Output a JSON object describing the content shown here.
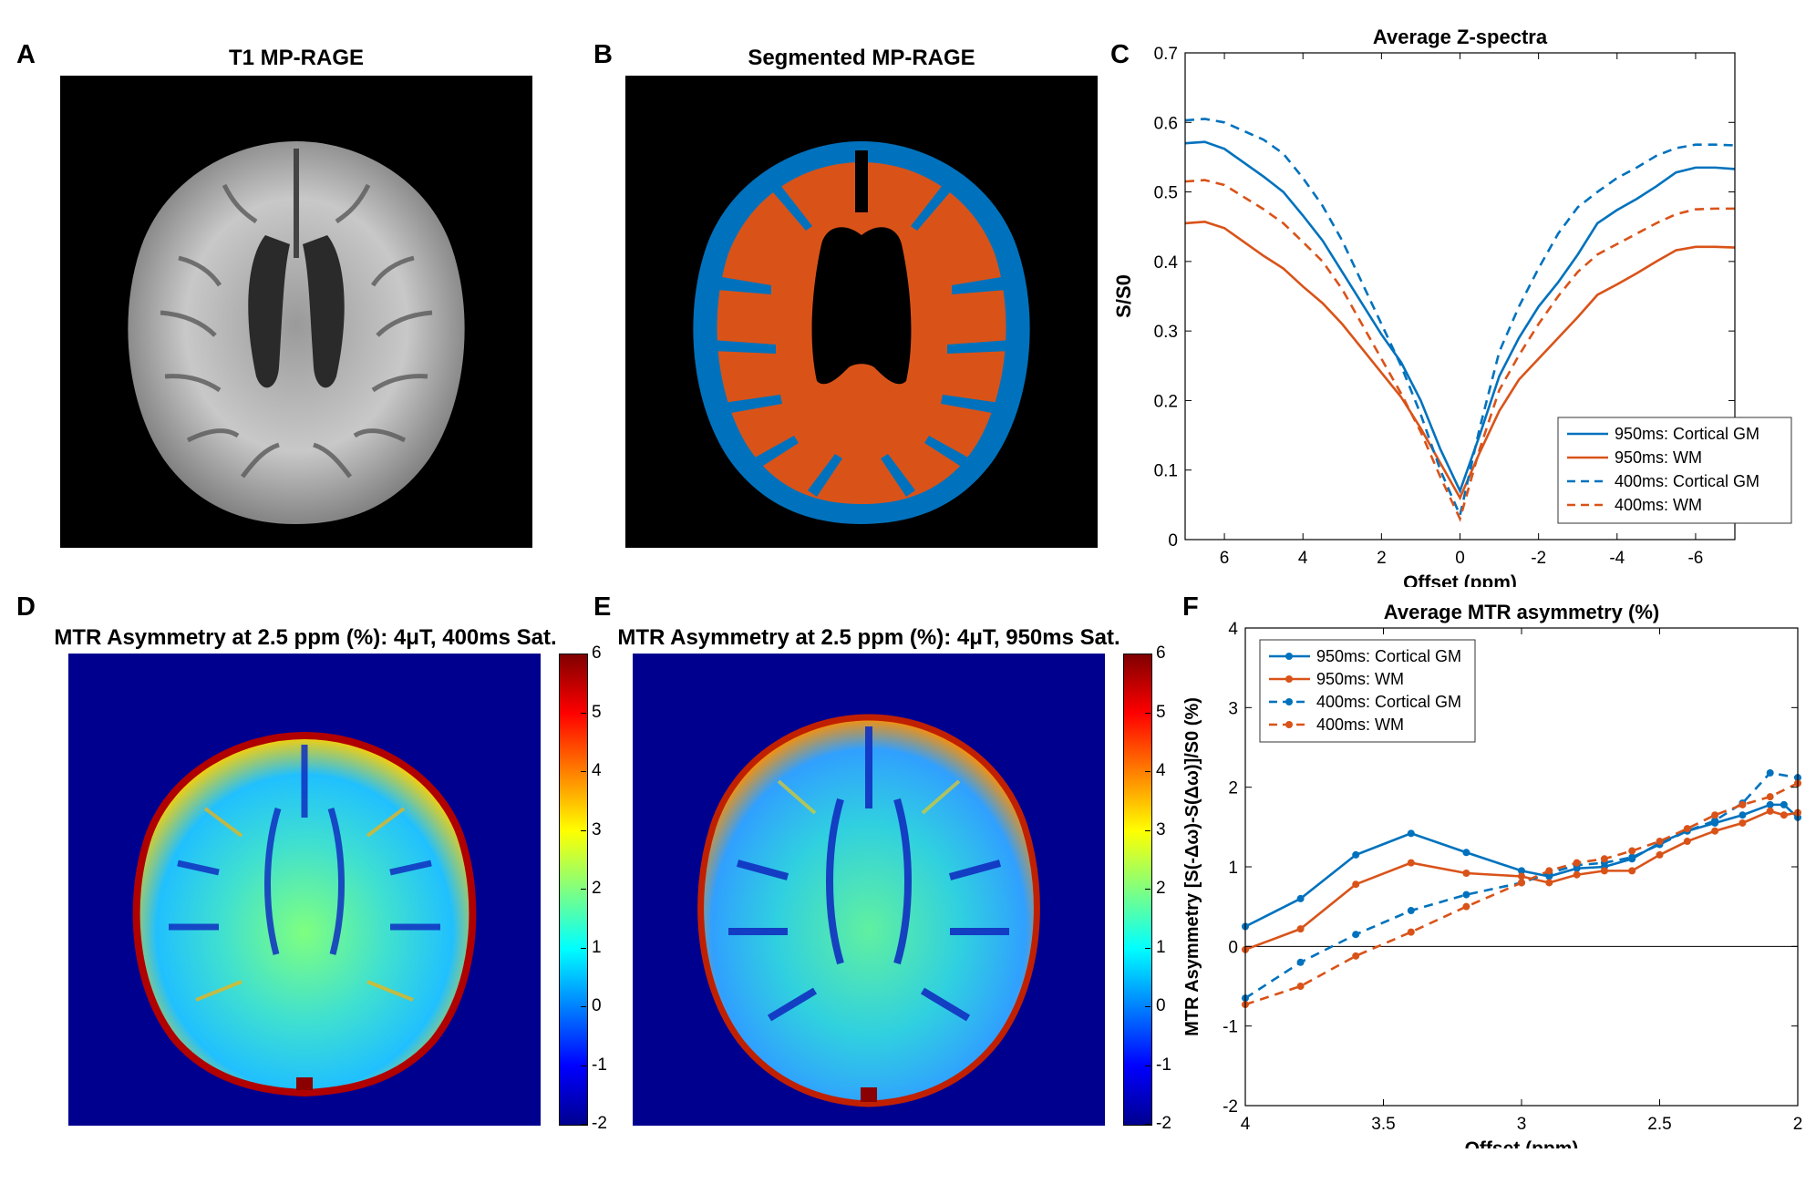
{
  "panels": {
    "A": {
      "letter": "A",
      "title": "T1 MP-RAGE"
    },
    "B": {
      "letter": "B",
      "title": "Segmented MP-RAGE"
    },
    "C": {
      "letter": "C"
    },
    "D": {
      "letter": "D",
      "title": "MTR Asymmetry at 2.5 ppm (%): 4μT, 400ms Sat."
    },
    "E": {
      "letter": "E",
      "title": "MTR Asymmetry at 2.5 ppm (%): 4μT, 950ms Sat."
    },
    "F": {
      "letter": "F"
    }
  },
  "colorbar": {
    "ticks": [
      "6",
      "5",
      "4",
      "3",
      "2",
      "1",
      "0",
      "-1",
      "-2"
    ],
    "colors": [
      "#00008f",
      "#0000ff",
      "#0080ff",
      "#00ffff",
      "#80ff80",
      "#ffff00",
      "#ff8000",
      "#ff0000",
      "#800000"
    ]
  },
  "segmentation_colors": {
    "gm": "#0072bd",
    "wm": "#d95319"
  },
  "chart_data": [
    {
      "type": "line",
      "title": "Average Z-spectra",
      "xlabel": "Offset (ppm)",
      "ylabel": "S/S0",
      "xlim": [
        7,
        -7
      ],
      "ylim": [
        0,
        0.7
      ],
      "x_reversed": true,
      "xticks": [
        6,
        4,
        2,
        0,
        -2,
        -4,
        -6
      ],
      "xtick_labels": [
        "6",
        "4",
        "2",
        "0",
        "-2",
        "-4",
        "-6"
      ],
      "yticks": [
        0,
        0.1,
        0.2,
        0.3,
        0.4,
        0.5,
        0.6,
        0.7
      ],
      "ytick_labels": [
        "0",
        "0.1",
        "0.2",
        "0.3",
        "0.4",
        "0.5",
        "0.6",
        "0.7"
      ],
      "legend_position": "bottom-right",
      "series": [
        {
          "name": "950ms: Cortical GM",
          "color": "#0072bd",
          "style": "solid",
          "x": [
            7,
            6.5,
            6,
            5,
            4.5,
            4,
            3.5,
            3,
            2.5,
            2,
            1.5,
            1,
            0.5,
            0,
            -0.5,
            -1,
            -1.5,
            -2,
            -2.5,
            -3,
            -3.5,
            -4,
            -4.5,
            -5,
            -5.5,
            -6,
            -6.5,
            -7
          ],
          "values": [
            0.57,
            0.572,
            0.562,
            0.522,
            0.5,
            0.466,
            0.43,
            0.385,
            0.34,
            0.295,
            0.255,
            0.2,
            0.13,
            0.07,
            0.15,
            0.235,
            0.29,
            0.335,
            0.37,
            0.41,
            0.455,
            0.474,
            0.49,
            0.508,
            0.528,
            0.535,
            0.535,
            0.533
          ]
        },
        {
          "name": "950ms: WM",
          "color": "#d95319",
          "style": "solid",
          "x": [
            7,
            6.5,
            6,
            5,
            4.5,
            4,
            3.5,
            3,
            2.5,
            2,
            1.5,
            1,
            0.5,
            0,
            -0.5,
            -1,
            -1.5,
            -2,
            -2.5,
            -3,
            -3.5,
            -4,
            -4.5,
            -5,
            -5.5,
            -6,
            -6.5,
            -7
          ],
          "values": [
            0.455,
            0.457,
            0.448,
            0.408,
            0.39,
            0.364,
            0.34,
            0.31,
            0.275,
            0.24,
            0.205,
            0.16,
            0.11,
            0.06,
            0.125,
            0.185,
            0.23,
            0.26,
            0.29,
            0.32,
            0.352,
            0.367,
            0.383,
            0.4,
            0.416,
            0.421,
            0.421,
            0.42
          ]
        },
        {
          "name": "400ms: Cortical GM",
          "color": "#0072bd",
          "style": "dashed",
          "x": [
            7,
            6.5,
            6,
            5,
            4.5,
            4,
            3.5,
            3,
            2.5,
            2,
            1.5,
            1,
            0.5,
            0,
            -0.5,
            -1,
            -1.5,
            -2,
            -2.5,
            -3,
            -3.5,
            -4,
            -4.5,
            -5,
            -5.5,
            -6,
            -6.5,
            -7
          ],
          "values": [
            0.603,
            0.605,
            0.6,
            0.575,
            0.555,
            0.52,
            0.48,
            0.43,
            0.37,
            0.31,
            0.25,
            0.18,
            0.1,
            0.035,
            0.16,
            0.27,
            0.335,
            0.39,
            0.44,
            0.478,
            0.5,
            0.52,
            0.535,
            0.552,
            0.563,
            0.568,
            0.568,
            0.567
          ]
        },
        {
          "name": "400ms: WM",
          "color": "#d95319",
          "style": "dashed",
          "x": [
            7,
            6.5,
            6,
            5,
            4.5,
            4,
            3.5,
            3,
            2.5,
            2,
            1.5,
            1,
            0.5,
            0,
            -0.5,
            -1,
            -1.5,
            -2,
            -2.5,
            -3,
            -3.5,
            -4,
            -4.5,
            -5,
            -5.5,
            -6,
            -6.5,
            -7
          ],
          "values": [
            0.515,
            0.517,
            0.51,
            0.475,
            0.455,
            0.428,
            0.4,
            0.36,
            0.31,
            0.26,
            0.21,
            0.155,
            0.09,
            0.03,
            0.13,
            0.215,
            0.265,
            0.31,
            0.35,
            0.385,
            0.41,
            0.425,
            0.44,
            0.455,
            0.468,
            0.475,
            0.476,
            0.476
          ]
        }
      ]
    },
    {
      "type": "line",
      "title": "Average MTR asymmetry (%)",
      "xlabel": "Offset (ppm)",
      "ylabel": "MTR Asymmetry [S(-Δω)-S(Δω)]/S0 (%)",
      "xlim": [
        4,
        2
      ],
      "ylim": [
        -2,
        4
      ],
      "x_reversed": true,
      "xticks": [
        4,
        3.5,
        3,
        2.5,
        2
      ],
      "xtick_labels": [
        "4",
        "3.5",
        "3",
        "2.5",
        "2"
      ],
      "yticks": [
        -2,
        -1,
        0,
        1,
        2,
        3,
        4
      ],
      "ytick_labels": [
        "-2",
        "-1",
        "0",
        "1",
        "2",
        "3",
        "4"
      ],
      "zero_line": true,
      "legend_position": "top-left",
      "series": [
        {
          "name": "950ms: Cortical GM",
          "color": "#0072bd",
          "style": "solid",
          "markers": true,
          "x": [
            4,
            3.8,
            3.6,
            3.4,
            3.2,
            3,
            2.9,
            2.8,
            2.7,
            2.6,
            2.5,
            2.4,
            2.3,
            2.2,
            2.1,
            2.05,
            2
          ],
          "values": [
            0.25,
            0.6,
            1.15,
            1.42,
            1.18,
            0.95,
            0.88,
            0.98,
            1.0,
            1.1,
            1.3,
            1.45,
            1.55,
            1.65,
            1.78,
            1.78,
            1.62
          ]
        },
        {
          "name": "950ms: WM",
          "color": "#d95319",
          "style": "solid",
          "markers": true,
          "x": [
            4,
            3.8,
            3.6,
            3.4,
            3.2,
            3,
            2.9,
            2.8,
            2.7,
            2.6,
            2.5,
            2.4,
            2.3,
            2.2,
            2.1,
            2.05,
            2
          ],
          "values": [
            -0.04,
            0.22,
            0.78,
            1.05,
            0.92,
            0.88,
            0.8,
            0.9,
            0.95,
            0.95,
            1.15,
            1.32,
            1.45,
            1.55,
            1.7,
            1.65,
            1.68
          ]
        },
        {
          "name": "400ms: Cortical GM",
          "color": "#0072bd",
          "style": "dashed",
          "markers": true,
          "x": [
            4,
            3.8,
            3.6,
            3.4,
            3.2,
            3,
            2.9,
            2.8,
            2.7,
            2.6,
            2.5,
            2.4,
            2.3,
            2.2,
            2.1,
            2
          ],
          "values": [
            -0.65,
            -0.2,
            0.15,
            0.45,
            0.65,
            0.8,
            0.92,
            1.02,
            1.05,
            1.12,
            1.28,
            1.45,
            1.58,
            1.8,
            2.18,
            2.12
          ]
        },
        {
          "name": "400ms: WM",
          "color": "#d95319",
          "style": "dashed",
          "markers": true,
          "x": [
            4,
            3.8,
            3.6,
            3.4,
            3.2,
            3,
            2.9,
            2.8,
            2.7,
            2.6,
            2.5,
            2.4,
            2.3,
            2.2,
            2.1,
            2
          ],
          "values": [
            -0.73,
            -0.5,
            -0.12,
            0.18,
            0.5,
            0.8,
            0.95,
            1.05,
            1.1,
            1.2,
            1.32,
            1.48,
            1.65,
            1.78,
            1.88,
            2.05
          ]
        }
      ]
    }
  ]
}
